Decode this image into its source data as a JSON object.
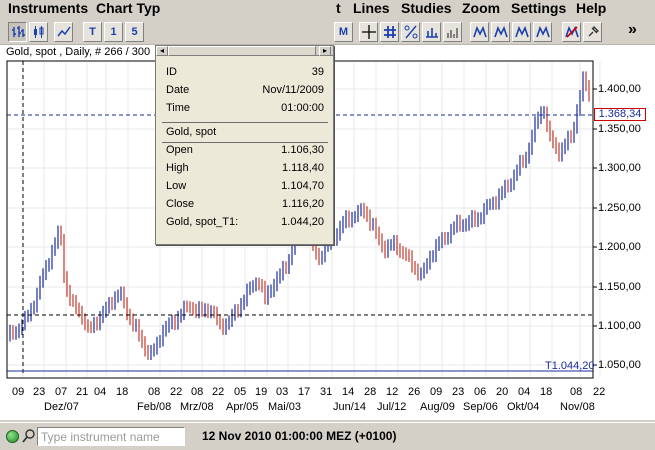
{
  "menubar": {
    "items": [
      "Instruments",
      "Chart Typ",
      "t",
      "Lines",
      "Studies",
      "Zoom",
      "Settings",
      "Help"
    ]
  },
  "toolbar": {
    "buttons": [
      "T",
      "1",
      "5",
      "M"
    ],
    "more_label": "»"
  },
  "chart": {
    "title": "Gold, spot , Daily, # 266 / 300",
    "price_labels": [
      "1.400,00",
      "1.350,00",
      "1.300,00",
      "1.250,00",
      "1.200,00",
      "1.150,00",
      "1.100,00",
      "1.050,00"
    ],
    "current_price": "1.368,34",
    "t1_label": "T1.044,20",
    "colors": {
      "up_bar": "#1a2c9c",
      "down_bar": "#c0392b",
      "current_line": "#1a2c9c",
      "hline": "#000000"
    }
  },
  "xaxis": {
    "days": [
      "09",
      "23",
      "07",
      "21",
      "04",
      "18",
      "08",
      "22",
      "08",
      "22",
      "05",
      "19",
      "03",
      "17",
      "31",
      "14",
      "28",
      "12",
      "26",
      "09",
      "23",
      "06",
      "20",
      "04",
      "18",
      "08",
      "22"
    ],
    "months": [
      "Dez/07",
      "Feb/08",
      "Mrz/08",
      "Apr/05",
      "Mai/03",
      "Jun/14",
      "Jul/12",
      "Aug/09",
      "Sep/06",
      "Okt/04",
      "Nov/08"
    ]
  },
  "tooltip": {
    "id_label": "ID",
    "id_value": "39",
    "date_label": "Date",
    "date_value": "Nov/11/2009",
    "time_label": "Time",
    "time_value": "01:00:00",
    "instrument": "Gold, spot",
    "open_label": "Open",
    "open_value": "1.106,30",
    "high_label": "High",
    "high_value": "1.118,40",
    "low_label": "Low",
    "low_value": "1.104,70",
    "close_label": "Close",
    "close_value": "1.116,20",
    "t1_label": "Gold, spot_T1:",
    "t1_value": "1.044,20"
  },
  "statusbar": {
    "search_placeholder": "Type instrument name",
    "datetime": "12 Nov 2010 01:00:00  MEZ (+0100)"
  }
}
